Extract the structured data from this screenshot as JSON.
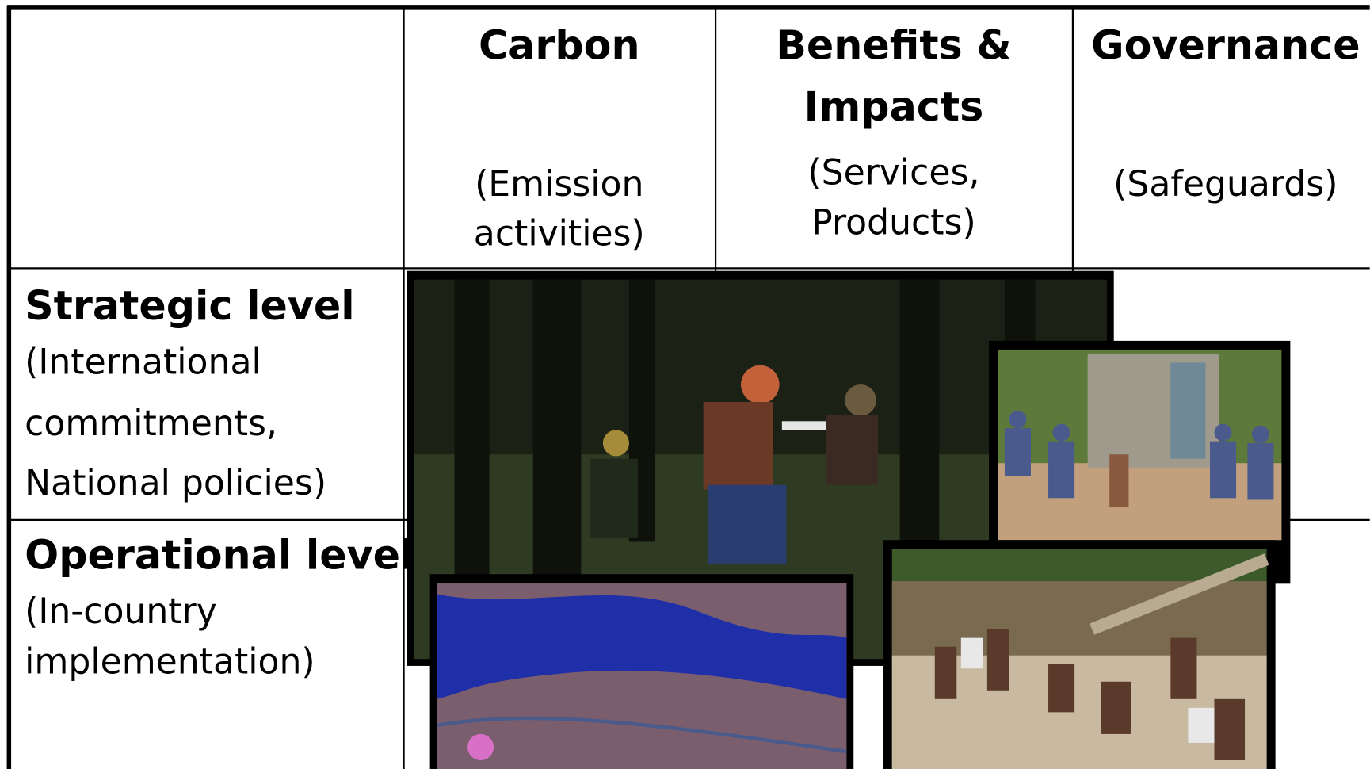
{
  "table": {
    "columns": [
      {
        "title": [
          "Carbon"
        ],
        "subtitle": [
          "(Emission",
          "activities)"
        ]
      },
      {
        "title": [
          "Benefits &",
          "Impacts"
        ],
        "subtitle": [
          "(Services,",
          "Products)"
        ]
      },
      {
        "title": [
          "Governance"
        ],
        "subtitle": [
          "(Safeguards)"
        ]
      }
    ],
    "rows": [
      {
        "title": "Strategic level",
        "subtitle": [
          "(International",
          "commitments,",
          "National policies)"
        ]
      },
      {
        "title": "Operational level",
        "subtitle": [
          "(In-country",
          "implementation)"
        ]
      }
    ]
  }
}
